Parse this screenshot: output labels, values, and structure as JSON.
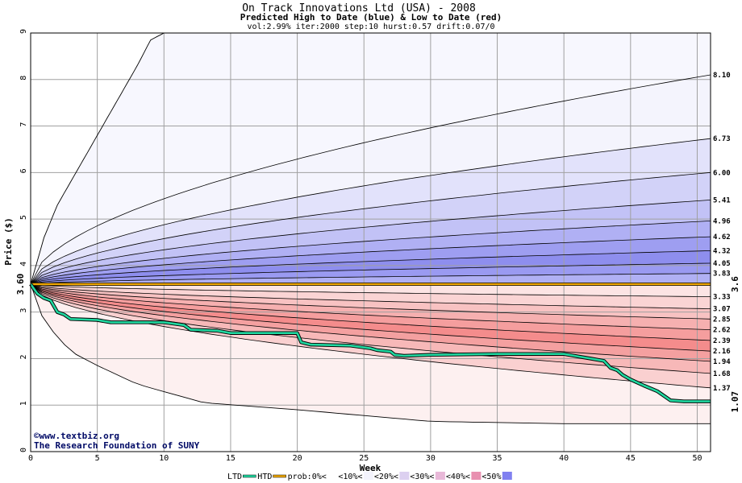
{
  "chart_data": {
    "type": "area",
    "title": "On Track Innovations Ltd (USA) - 2008",
    "subtitle": "Predicted High to Date (blue) &  Low to Date (red)",
    "params": "vol:2.99% iter:2000 step:10 hurst:0.57 drift:0.07/0",
    "xlabel": "Week",
    "ylabel": "Price ($)",
    "xlim": [
      0,
      51
    ],
    "ylim": [
      0,
      9
    ],
    "x_ticks": [
      0,
      5,
      10,
      15,
      20,
      25,
      30,
      35,
      40,
      45,
      50
    ],
    "y_ticks": [
      0,
      1,
      2,
      3,
      4,
      5,
      6,
      7,
      8,
      9
    ],
    "grid": true,
    "start_price": 3.6,
    "start_label": "3.60",
    "right_start_label": "3.6",
    "right_end_label": "1.07",
    "end_value_labels": [
      "8.10",
      "6.73",
      "6.00",
      "5.41",
      "4.96",
      "4.62",
      "4.32",
      "4.05",
      "3.83",
      "3.33",
      "3.07",
      "2.85",
      "2.62",
      "2.39",
      "2.16",
      "1.94",
      "1.68",
      "1.37"
    ],
    "high_band_ends": [
      8.1,
      6.73,
      6.0,
      5.41,
      4.96,
      4.62,
      4.32,
      4.05,
      3.83
    ],
    "low_band_ends": [
      3.33,
      3.07,
      2.85,
      2.62,
      2.39,
      2.16,
      1.94,
      1.68,
      1.37
    ],
    "outer_high_curve": {
      "x": [
        0,
        1,
        2,
        3,
        4,
        5,
        6,
        7,
        8,
        9,
        10
      ],
      "y": [
        3.6,
        4.6,
        5.3,
        5.8,
        6.3,
        6.8,
        7.3,
        7.8,
        8.3,
        8.85,
        9.0
      ]
    },
    "outer_low_curve": {
      "x": [
        0,
        1,
        3,
        5,
        8,
        13,
        20,
        30,
        40,
        51
      ],
      "y": [
        3.6,
        2.8,
        2.15,
        1.85,
        1.45,
        1.05,
        0.9,
        0.65,
        0.6,
        0.6
      ]
    },
    "ltd_series": {
      "name": "LTD",
      "x": [
        0,
        0.5,
        1,
        1.5,
        2,
        2.5,
        3,
        5,
        6,
        10,
        11.5,
        12,
        14,
        15,
        20,
        20.3,
        21,
        24,
        25.5,
        26,
        27,
        27.3,
        28,
        30,
        35,
        40,
        41,
        42,
        43,
        43.5,
        44,
        44.4,
        45,
        46,
        47,
        48,
        49,
        51
      ],
      "y": [
        3.6,
        3.4,
        3.3,
        3.25,
        3.0,
        2.95,
        2.85,
        2.83,
        2.78,
        2.78,
        2.72,
        2.62,
        2.6,
        2.55,
        2.55,
        2.35,
        2.3,
        2.28,
        2.22,
        2.18,
        2.15,
        2.08,
        2.06,
        2.08,
        2.1,
        2.1,
        2.05,
        2.0,
        1.95,
        1.8,
        1.75,
        1.65,
        1.55,
        1.42,
        1.3,
        1.1,
        1.08,
        1.08
      ]
    },
    "htd_value": 3.6,
    "colors": {
      "high_bands": [
        "#f4f4fd",
        "#e2e2fb",
        "#d2d2f8",
        "#c2c2f6",
        "#b0b0f4",
        "#9e9ef1",
        "#8e8eee",
        "#9a9af1",
        "#b0b0f4"
      ],
      "low_bands": [
        "#fce4e4",
        "#fad4d4",
        "#f8c2c2",
        "#f6b0b0",
        "#f59e9e",
        "#f48c8c",
        "#f4a0a0",
        "#f7b8b8",
        "#fad0d0"
      ],
      "outer_high_fill": "#f7f7fe",
      "outer_low_fill": "#fdf0f0",
      "ltd": "#20d8a0",
      "htd": "#f0a800",
      "grid": "#a0a0a0"
    },
    "credit_lines": [
      "©www.textbiz.org",
      "The Research Foundation of SUNY"
    ],
    "legend": [
      {
        "label": "LTD",
        "color": "#20d8a0",
        "kind": "line"
      },
      {
        "label": "HTD",
        "color": "#f0a800",
        "kind": "line"
      },
      {
        "label": "prob:0%<",
        "color": "#ffffff",
        "kind": "swatch"
      },
      {
        "label": "<10%<",
        "color": "#f4f4fd",
        "kind": "swatch"
      },
      {
        "label": "<20%<",
        "color": "#dcd0f0",
        "kind": "swatch"
      },
      {
        "label": "<30%<",
        "color": "#e8b8d8",
        "kind": "swatch"
      },
      {
        "label": "<40%<",
        "color": "#e890b0",
        "kind": "swatch"
      },
      {
        "label": "<50%",
        "color": "#8080f0",
        "kind": "swatch"
      }
    ]
  }
}
